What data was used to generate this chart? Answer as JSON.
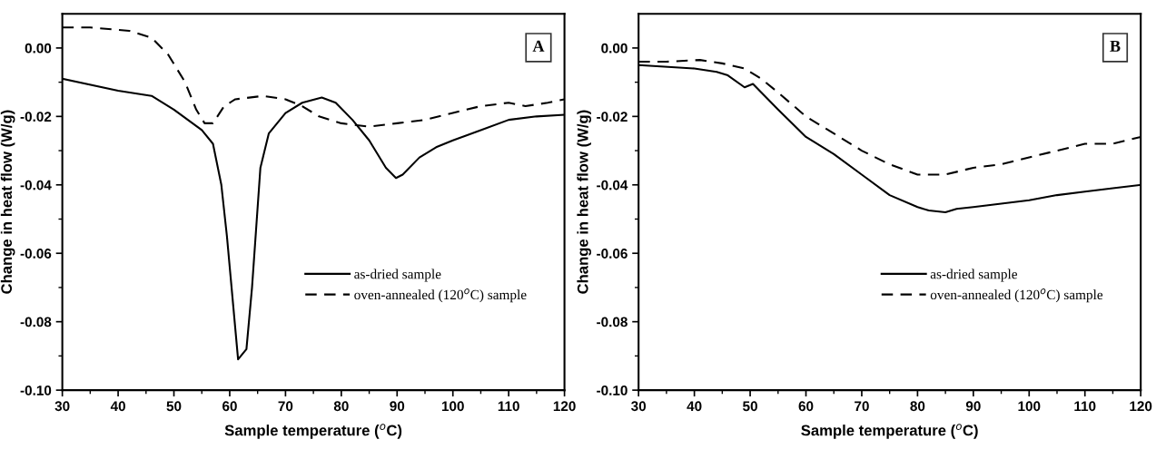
{
  "chart_data": [
    {
      "type": "line",
      "xlabel": "Sample temperature ($^{o}$C)",
      "ylabel": "Change in heat flow (W/g)",
      "annotations": [
        "A"
      ],
      "legend": "bottom right",
      "grid": false,
      "xlim": [
        30,
        120
      ],
      "ylim": [
        -0.1,
        0.01
      ],
      "xticks": [
        30,
        40,
        50,
        60,
        70,
        80,
        90,
        100,
        110,
        120
      ],
      "yticks": [
        {
          "value": 0,
          "label": "0.00"
        },
        {
          "value": -0.02,
          "label": "-0.02"
        },
        {
          "value": -0.04,
          "label": "-0.04"
        },
        {
          "value": -0.06,
          "label": "-0.06"
        },
        {
          "value": -0.08,
          "label": "-0.08"
        },
        {
          "value": -0.1,
          "label": "-0.10"
        }
      ],
      "series": [
        {
          "name": "as-dried sample",
          "color": "#000000",
          "line_style": "solid",
          "x": [
            30,
            40,
            46,
            50,
            55,
            57,
            58.5,
            59.5,
            61.5,
            63,
            64,
            65.5,
            67,
            70,
            73,
            76.5,
            79,
            82,
            85,
            88,
            89.8,
            91,
            94,
            97,
            100,
            105,
            110,
            115,
            120
          ],
          "values": [
            -0.009,
            -0.0125,
            -0.014,
            -0.018,
            -0.024,
            -0.028,
            -0.04,
            -0.055,
            -0.091,
            -0.088,
            -0.07,
            -0.035,
            -0.025,
            -0.019,
            -0.016,
            -0.0145,
            -0.016,
            -0.021,
            -0.027,
            -0.035,
            -0.038,
            -0.037,
            -0.032,
            -0.029,
            -0.027,
            -0.024,
            -0.021,
            -0.02,
            -0.0195
          ]
        },
        {
          "name": "oven-annealed (120$^{o}$C) sample",
          "color": "#000000",
          "line_style": "dashed",
          "x": [
            30,
            35,
            42,
            46,
            49,
            52,
            54,
            55.5,
            57,
            59,
            61,
            66,
            70,
            73,
            76,
            80,
            85,
            90,
            95,
            100,
            105,
            110,
            113,
            117,
            120
          ],
          "values": [
            0.006,
            0.006,
            0.005,
            0.003,
            -0.002,
            -0.01,
            -0.018,
            -0.022,
            -0.022,
            -0.017,
            -0.015,
            -0.014,
            -0.015,
            -0.017,
            -0.02,
            -0.022,
            -0.023,
            -0.022,
            -0.021,
            -0.019,
            -0.017,
            -0.016,
            -0.017,
            -0.016,
            -0.015
          ]
        }
      ]
    },
    {
      "type": "line",
      "xlabel": "Sample temperature ($^{o}$C)",
      "ylabel": "Change in heat flow (W/g)",
      "annotations": [
        "B"
      ],
      "legend": "bottom right",
      "grid": false,
      "xlim": [
        30,
        120
      ],
      "ylim": [
        -0.1,
        0.01
      ],
      "xticks": [
        30,
        40,
        50,
        60,
        70,
        80,
        90,
        100,
        110,
        120
      ],
      "yticks": [
        {
          "value": 0,
          "label": "0.00"
        },
        {
          "value": -0.02,
          "label": "-0.02"
        },
        {
          "value": -0.04,
          "label": "-0.04"
        },
        {
          "value": -0.06,
          "label": "-0.06"
        },
        {
          "value": -0.08,
          "label": "-0.08"
        },
        {
          "value": -0.1,
          "label": "-0.10"
        }
      ],
      "series": [
        {
          "name": "as-dried sample",
          "color": "#000000",
          "line_style": "solid",
          "x": [
            30,
            40,
            44,
            46,
            49,
            50.5,
            55,
            60,
            65,
            70,
            75,
            80,
            82,
            85,
            87,
            90,
            95,
            100,
            105,
            110,
            115,
            120
          ],
          "values": [
            -0.005,
            -0.006,
            -0.007,
            -0.008,
            -0.0115,
            -0.0105,
            -0.018,
            -0.026,
            -0.031,
            -0.037,
            -0.043,
            -0.0465,
            -0.0475,
            -0.048,
            -0.047,
            -0.0465,
            -0.0455,
            -0.0445,
            -0.043,
            -0.042,
            -0.041,
            -0.04
          ]
        },
        {
          "name": "oven-annealed (120$^{o}$C) sample",
          "color": "#000000",
          "line_style": "dashed",
          "x": [
            30,
            35,
            41,
            45,
            49,
            52,
            55,
            60,
            65,
            70,
            75,
            80,
            85,
            90,
            95,
            100,
            105,
            110,
            115,
            120
          ],
          "values": [
            -0.004,
            -0.004,
            -0.0035,
            -0.0045,
            -0.006,
            -0.009,
            -0.013,
            -0.02,
            -0.025,
            -0.03,
            -0.034,
            -0.037,
            -0.037,
            -0.035,
            -0.034,
            -0.032,
            -0.03,
            -0.028,
            -0.028,
            -0.026
          ]
        }
      ]
    }
  ]
}
